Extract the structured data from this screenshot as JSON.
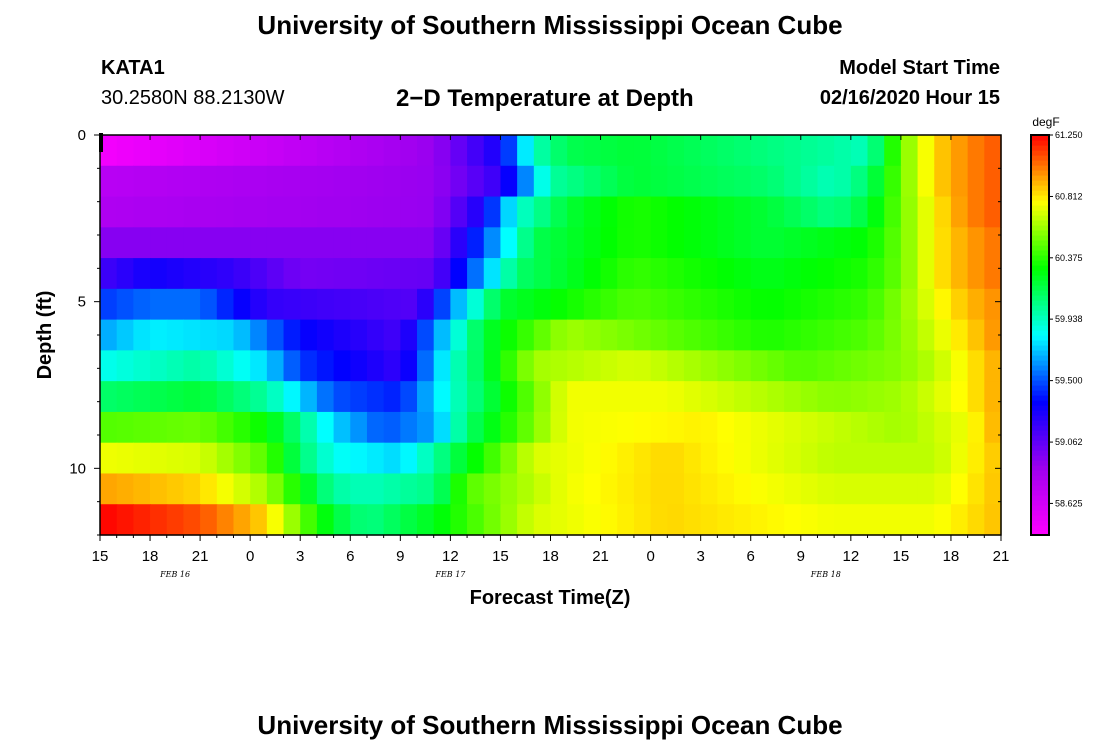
{
  "header": {
    "title": "University of Southern Mississippi Ocean Cube",
    "station_id": "KATA1",
    "station_coords": "30.2580N 88.2130W",
    "model_start_label": "Model Start Time",
    "model_start_value": "02/16/2020 Hour 15"
  },
  "footer": {
    "title": "University of Southern Mississippi Ocean Cube"
  },
  "chart_data": {
    "type": "heatmap",
    "title": "2−D Temperature at Depth",
    "xlabel": "Forecast Time(Z)",
    "ylabel": "Depth (ft)",
    "x_hours": [
      0,
      54
    ],
    "ylim": [
      0,
      12
    ],
    "y_inverted": true,
    "x_tick_labels": [
      "15",
      "18",
      "21",
      "0",
      "3",
      "6",
      "9",
      "12",
      "15",
      "18",
      "21",
      "0",
      "3",
      "6",
      "9",
      "12",
      "15",
      "18",
      "21"
    ],
    "date_labels": [
      {
        "label": "FEB 16",
        "hour": 4.5
      },
      {
        "label": "FEB 17",
        "hour": 21
      },
      {
        "label": "FEB 18",
        "hour": 43.5
      }
    ],
    "y_ticks": [
      0,
      5,
      10
    ],
    "colorbar": {
      "unit": "degF",
      "min": 58.4,
      "max": 61.25,
      "tick_values": [
        61.25,
        60.812,
        60.375,
        59.938,
        59.5,
        59.062,
        58.625
      ],
      "tick_labels": [
        "61.250",
        "60.812",
        "60.375",
        "59.938",
        "59.500",
        "59.062",
        "58.625"
      ],
      "colors": [
        "#ff00ff",
        "#a000f0",
        "#0000ff",
        "#00ffff",
        "#00ff00",
        "#ffff00",
        "#ff0000"
      ]
    },
    "layer_depths_ft": [
      0,
      1,
      2,
      3,
      4,
      5,
      6,
      7,
      8,
      9,
      10,
      11,
      12
    ],
    "layer_profiles": [
      {
        "layer": 0,
        "hours": [
          0,
          20,
          24,
          26,
          28,
          32,
          38,
          44,
          46,
          48,
          50,
          52,
          54
        ],
        "values": [
          58.45,
          58.9,
          59.3,
          59.95,
          60.15,
          60.2,
          60.1,
          60.0,
          59.95,
          60.5,
          60.85,
          61.0,
          61.1
        ]
      },
      {
        "layer": 1,
        "hours": [
          0,
          20,
          24,
          27,
          32,
          40,
          44,
          46,
          48,
          50,
          52,
          54
        ],
        "values": [
          58.75,
          58.9,
          59.2,
          60.0,
          60.2,
          60.1,
          59.95,
          60.1,
          60.5,
          60.85,
          61.0,
          61.1
        ]
      },
      {
        "layer": 2,
        "hours": [
          0,
          20,
          23,
          25,
          28,
          32,
          40,
          44,
          46,
          48,
          50,
          52,
          54
        ],
        "values": [
          58.8,
          58.9,
          59.3,
          59.9,
          60.2,
          60.35,
          60.2,
          60.05,
          60.2,
          60.5,
          60.8,
          61.0,
          61.1
        ]
      },
      {
        "layer": 3,
        "hours": [
          0,
          20,
          23,
          26,
          32,
          40,
          46,
          48,
          50,
          52,
          54
        ],
        "values": [
          58.95,
          58.95,
          59.5,
          60.15,
          60.35,
          60.2,
          60.3,
          60.5,
          60.8,
          60.95,
          61.05
        ]
      },
      {
        "layer": 4,
        "hours": [
          0,
          3,
          8,
          12,
          20,
          22,
          25,
          32,
          40,
          46,
          48,
          50,
          52,
          54
        ],
        "values": [
          59.15,
          59.3,
          59.2,
          59.0,
          59.05,
          59.45,
          60.1,
          60.4,
          60.25,
          60.35,
          60.5,
          60.8,
          60.95,
          61.05
        ]
      },
      {
        "layer": 5,
        "hours": [
          0,
          3,
          6,
          10,
          19,
          21,
          24,
          32,
          40,
          46,
          48,
          50,
          52,
          54
        ],
        "values": [
          59.45,
          59.55,
          59.55,
          59.2,
          59.1,
          59.6,
          60.2,
          60.45,
          60.3,
          60.4,
          60.55,
          60.75,
          60.9,
          61.0
        ]
      },
      {
        "layer": 6,
        "hours": [
          0,
          3,
          8,
          12,
          18,
          20,
          23,
          28,
          40,
          46,
          48,
          50,
          52,
          54
        ],
        "values": [
          59.65,
          59.8,
          59.75,
          59.35,
          59.15,
          59.6,
          60.2,
          60.6,
          60.35,
          60.45,
          60.55,
          60.7,
          60.85,
          61.0
        ]
      },
      {
        "layer": 7,
        "hours": [
          0,
          6,
          10,
          12,
          18,
          21,
          26,
          32,
          42,
          48,
          50,
          52,
          54
        ],
        "values": [
          59.85,
          60.0,
          59.75,
          59.45,
          59.2,
          59.9,
          60.6,
          60.7,
          60.45,
          60.55,
          60.65,
          60.8,
          60.95
        ]
      },
      {
        "layer": 8,
        "hours": [
          0,
          6,
          10,
          12,
          14,
          18,
          21,
          28,
          34,
          44,
          48,
          50,
          52,
          54
        ],
        "values": [
          60.1,
          60.2,
          60.0,
          59.75,
          59.5,
          59.4,
          59.9,
          60.75,
          60.75,
          60.55,
          60.6,
          60.7,
          60.8,
          60.95
        ]
      },
      {
        "layer": 9,
        "hours": [
          0,
          6,
          10,
          12,
          14,
          17,
          20,
          22,
          28,
          36,
          48,
          52,
          54
        ],
        "values": [
          60.45,
          60.5,
          60.3,
          60.05,
          59.75,
          59.5,
          59.65,
          60.1,
          60.75,
          60.8,
          60.6,
          60.75,
          60.95
        ]
      },
      {
        "layer": 10,
        "hours": [
          0,
          6,
          10,
          12,
          14,
          18,
          20,
          22,
          26,
          34,
          44,
          50,
          54
        ],
        "values": [
          60.75,
          60.7,
          60.45,
          60.1,
          59.85,
          59.75,
          60.0,
          60.25,
          60.7,
          60.85,
          60.65,
          60.65,
          60.9
        ]
      },
      {
        "layer": 11,
        "hours": [
          0,
          6,
          10,
          12,
          14,
          16,
          20,
          22,
          28,
          34,
          44,
          50,
          54
        ],
        "values": [
          60.95,
          60.85,
          60.6,
          60.3,
          60.0,
          59.95,
          60.05,
          60.45,
          60.75,
          60.85,
          60.7,
          60.7,
          60.9
        ]
      },
      {
        "layer": 12,
        "hours": [
          0,
          6,
          10,
          12,
          14,
          16,
          20,
          26,
          34,
          44,
          50,
          54
        ],
        "values": [
          61.25,
          61.1,
          60.85,
          60.5,
          60.2,
          60.05,
          60.25,
          60.7,
          60.85,
          60.75,
          60.75,
          60.9
        ]
      }
    ]
  }
}
